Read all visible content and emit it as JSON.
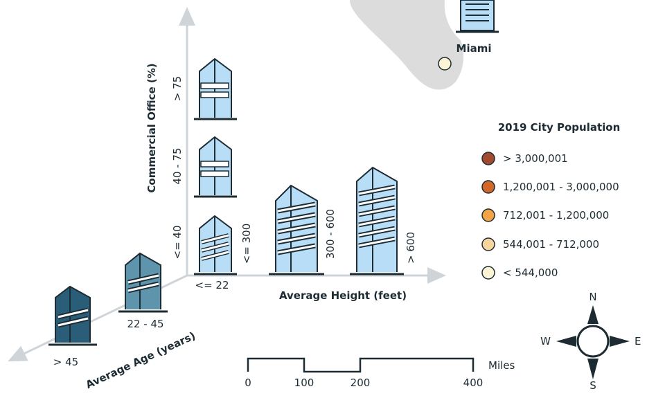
{
  "map": {
    "city_label": "Miami"
  },
  "axes": {
    "z_title": "Commercial Office (%)",
    "z_ticks": [
      "> 75",
      "40 - 75",
      "<= 40"
    ],
    "x_title": "Average Height (feet)",
    "x_ticks": [
      "<= 300",
      "300 - 600",
      "> 600"
    ],
    "y_title": "Average Age (years)",
    "y_ticks": [
      "<= 22",
      "22 - 45",
      "> 45"
    ]
  },
  "legend": {
    "title": "2019 City Population",
    "items": [
      {
        "label": "> 3,000,001",
        "color": "#a24a2f"
      },
      {
        "label": "1,200,001 - 3,000,000",
        "color": "#d2672a"
      },
      {
        "label": "712,001 - 1,200,000",
        "color": "#f2a444"
      },
      {
        "label": "544,001 - 712,000",
        "color": "#f8d59c"
      },
      {
        "label": "< 544,000",
        "color": "#fcf5d5"
      }
    ]
  },
  "scale_bar": {
    "unit": "Miles",
    "ticks": [
      "0",
      "100",
      "200",
      "400"
    ]
  },
  "compass": {
    "n": "N",
    "s": "S",
    "e": "E",
    "w": "W"
  },
  "colors": {
    "building_light": "#b8def7",
    "building_mid": "#5f94ad",
    "building_dark": "#2a5e78",
    "outline": "#1d2b33",
    "land": "#dcdcdc",
    "axis": "#cfd4d8"
  }
}
